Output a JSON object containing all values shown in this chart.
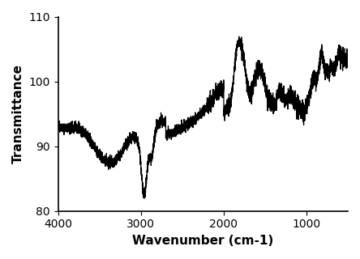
{
  "xlabel": "Wavenumber (cm-1)",
  "ylabel": "Transmittance",
  "ylim": [
    80,
    110
  ],
  "yticks": [
    80,
    90,
    100,
    110
  ],
  "xticks": [
    1000,
    2000,
    3000,
    4000
  ],
  "line_color": "#000000",
  "line_width": 0.9,
  "background_color": "#ffffff",
  "xlabel_fontsize": 11,
  "ylabel_fontsize": 11,
  "xlabel_bold": true,
  "ylabel_bold": true
}
